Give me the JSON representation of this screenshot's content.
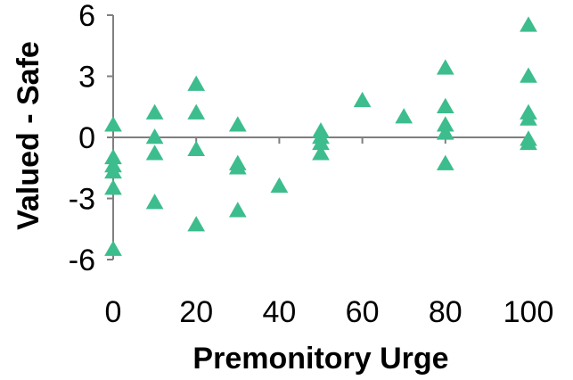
{
  "colors": {
    "marker": "#3dbd8e",
    "axis": "#7f7f7f",
    "background": "#ffffff",
    "text": "#000000"
  },
  "chart_data": {
    "type": "scatter",
    "title": "",
    "xlabel": "Premonitory Urge",
    "ylabel": "Valued - Safe",
    "xlim": [
      0,
      100
    ],
    "ylim": [
      -6,
      6
    ],
    "x_ticks": [
      0,
      20,
      40,
      60,
      80,
      100
    ],
    "y_ticks": [
      -6,
      -3,
      0,
      3,
      6
    ],
    "x_tick_labels": [
      "0",
      "20",
      "40",
      "60",
      "80",
      "100"
    ],
    "y_tick_labels": [
      "-6",
      "-3",
      "0",
      "3",
      "6"
    ],
    "grid": false,
    "legend": "none",
    "marker": "triangle",
    "series": [
      {
        "points": [
          {
            "x": 0,
            "y": 0.6
          },
          {
            "x": 0,
            "y": -1.0
          },
          {
            "x": 0,
            "y": -1.4
          },
          {
            "x": 0,
            "y": -1.7
          },
          {
            "x": 0,
            "y": -2.5
          },
          {
            "x": 0,
            "y": -5.5
          },
          {
            "x": 10,
            "y": 1.2
          },
          {
            "x": 10,
            "y": 0.0
          },
          {
            "x": 10,
            "y": -0.8
          },
          {
            "x": 10,
            "y": -3.2
          },
          {
            "x": 20,
            "y": 2.6
          },
          {
            "x": 20,
            "y": 1.2
          },
          {
            "x": 20,
            "y": -0.6
          },
          {
            "x": 20,
            "y": -4.3
          },
          {
            "x": 30,
            "y": 0.6
          },
          {
            "x": 30,
            "y": -1.3
          },
          {
            "x": 30,
            "y": -1.5
          },
          {
            "x": 30,
            "y": -3.6
          },
          {
            "x": 40,
            "y": -2.4
          },
          {
            "x": 50,
            "y": 0.3
          },
          {
            "x": 50,
            "y": 0.0
          },
          {
            "x": 50,
            "y": -0.3
          },
          {
            "x": 50,
            "y": -0.8
          },
          {
            "x": 60,
            "y": 1.8
          },
          {
            "x": 70,
            "y": 1.0
          },
          {
            "x": 80,
            "y": 3.4
          },
          {
            "x": 80,
            "y": 1.5
          },
          {
            "x": 80,
            "y": 0.6
          },
          {
            "x": 80,
            "y": 0.2
          },
          {
            "x": 80,
            "y": -1.3
          },
          {
            "x": 100,
            "y": 5.5
          },
          {
            "x": 100,
            "y": 3.0
          },
          {
            "x": 100,
            "y": 1.2
          },
          {
            "x": 100,
            "y": 0.9
          },
          {
            "x": 100,
            "y": -0.1
          },
          {
            "x": 100,
            "y": -0.3
          }
        ]
      }
    ]
  }
}
